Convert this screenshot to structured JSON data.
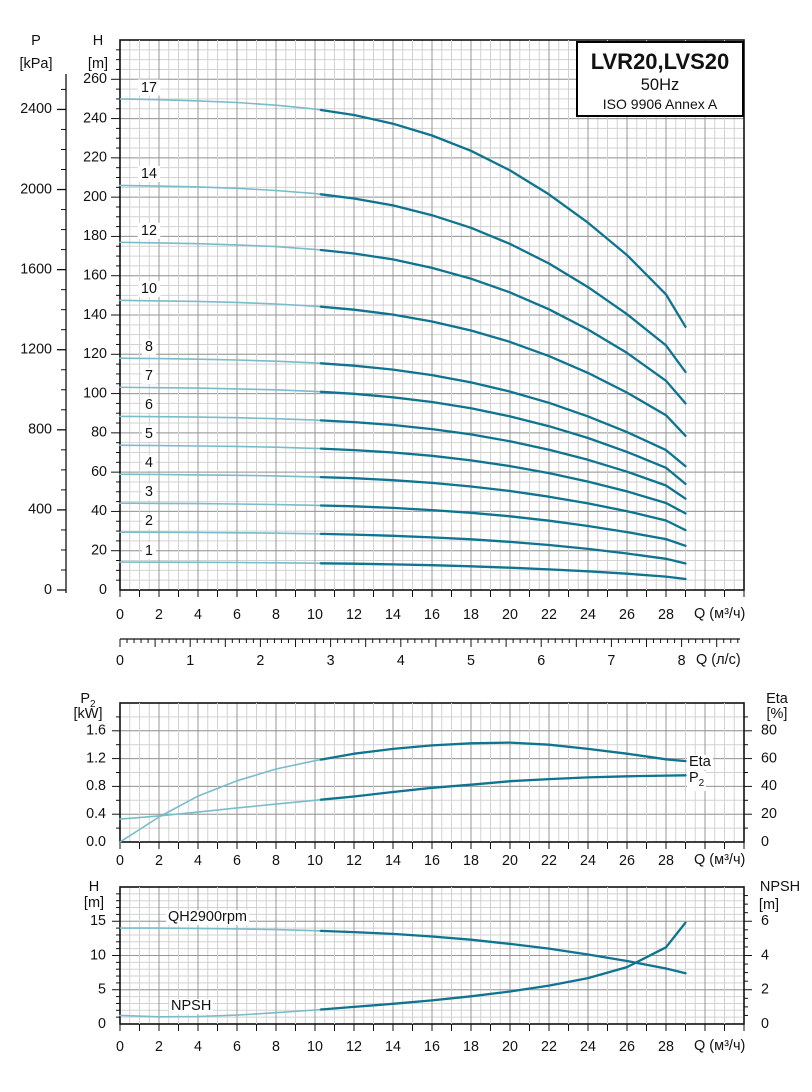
{
  "title_box": {
    "model": "LVR20,LVS20",
    "frequency": "50Hz",
    "standard": "ISO 9906 Annex A"
  },
  "colors": {
    "curve_light": "#79bcca",
    "curve_dark": "#0e7490",
    "grid_minor": "#d2d2d2",
    "grid_major": "#979797",
    "axis": "#111111"
  },
  "chart_data": [
    {
      "type": "line",
      "name": "QH stage curves",
      "left_axis": {
        "title": "P",
        "unit": "[kPa]",
        "tick_values": [
          0,
          400,
          800,
          1200,
          1600,
          2000,
          2400
        ]
      },
      "left_axis2": {
        "title": "H",
        "unit": "[m]",
        "tick_values": [
          0,
          20,
          40,
          60,
          80,
          100,
          120,
          140,
          160,
          180,
          200,
          220,
          240,
          260
        ]
      },
      "x_axis": {
        "title": "Q (м³/ч)",
        "tick_values": [
          0,
          2,
          4,
          6,
          8,
          10,
          12,
          14,
          16,
          18,
          20,
          22,
          24,
          26,
          28
        ]
      },
      "x_axis2": {
        "title": "Q (л/с)",
        "tick_values": [
          0,
          1,
          2,
          3,
          4,
          5,
          6,
          7,
          8
        ]
      },
      "split_q": 10.3,
      "x": [
        0,
        2,
        4,
        6,
        8,
        10,
        12,
        14,
        16,
        18,
        20,
        22,
        24,
        26,
        28,
        29
      ],
      "series": [
        {
          "label": "17",
          "values": [
            250,
            249.6,
            249,
            248.2,
            246.8,
            244.8,
            241.8,
            237.4,
            231.4,
            223.6,
            213.6,
            201.4,
            187,
            170.5,
            150.5,
            134
          ]
        },
        {
          "label": "14",
          "values": [
            206,
            205.6,
            205.2,
            204.5,
            203.4,
            201.8,
            199.3,
            195.8,
            190.8,
            184.4,
            176.2,
            166.2,
            154.2,
            140.4,
            124.5,
            111
          ]
        },
        {
          "label": "12",
          "values": [
            177,
            176.7,
            176.3,
            175.7,
            174.8,
            173.4,
            171.3,
            168.3,
            164,
            158.5,
            151.5,
            142.9,
            132.6,
            120.7,
            106.5,
            95
          ]
        },
        {
          "label": "10",
          "values": [
            147.5,
            147.2,
            146.9,
            146.4,
            145.6,
            144.5,
            142.7,
            140.2,
            136.7,
            132.1,
            126.3,
            119.1,
            110.5,
            100.5,
            89,
            78.5
          ]
        },
        {
          "label": "8",
          "values": [
            118,
            117.8,
            117.5,
            117.1,
            116.5,
            115.6,
            114.2,
            112.2,
            109.4,
            105.7,
            101,
            95.3,
            88.4,
            80.4,
            71.2,
            63
          ]
        },
        {
          "label": "7",
          "values": [
            103.2,
            103,
            102.8,
            102.4,
            101.9,
            101.1,
            99.9,
            98.1,
            95.7,
            92.5,
            88.4,
            83.4,
            77.4,
            70.3,
            62.2,
            54
          ]
        },
        {
          "label": "6",
          "values": [
            88.4,
            88.2,
            88,
            87.7,
            87.2,
            86.5,
            85.5,
            84,
            81.9,
            79.2,
            75.7,
            71.4,
            66.3,
            60.2,
            53.2,
            46.5
          ]
        },
        {
          "label": "5",
          "values": [
            73.7,
            73.5,
            73.3,
            73.1,
            72.7,
            72.1,
            71.2,
            70,
            68.3,
            66,
            63.1,
            59.5,
            55.2,
            50.2,
            44.3,
            39
          ]
        },
        {
          "label": "4",
          "values": [
            58.9,
            58.8,
            58.6,
            58.4,
            58.1,
            57.6,
            56.9,
            55.9,
            54.5,
            52.7,
            50.4,
            47.5,
            44.1,
            40.1,
            35.4,
            30.5
          ]
        },
        {
          "label": "3",
          "values": [
            44.2,
            44.1,
            44,
            43.8,
            43.5,
            43.1,
            42.6,
            41.8,
            40.7,
            39.3,
            37.5,
            35.3,
            32.6,
            29.5,
            25.9,
            22.5
          ]
        },
        {
          "label": "2",
          "values": [
            29.4,
            29.35,
            29.25,
            29.1,
            28.9,
            28.6,
            28.2,
            27.6,
            26.8,
            25.8,
            24.5,
            22.9,
            20.9,
            18.6,
            15.9,
            13.5
          ]
        },
        {
          "label": "1",
          "values": [
            14.2,
            14.15,
            14.1,
            14,
            13.85,
            13.65,
            13.4,
            13.05,
            12.6,
            12.05,
            11.35,
            10.5,
            9.5,
            8.3,
            6.8,
            5.6
          ]
        }
      ]
    },
    {
      "type": "line",
      "name": "Power and efficiency",
      "left_axis": {
        "title": "P",
        "title_sub": "2",
        "unit": "[kW]",
        "tick_values": [
          0,
          0.4,
          0.8,
          1.2,
          1.6
        ],
        "decimals": 1
      },
      "right_axis": {
        "title": "Eta",
        "unit": "[%]",
        "tick_values": [
          0,
          20,
          40,
          60,
          80
        ]
      },
      "x_axis": {
        "title": "Q (м³/ч)",
        "tick_values": [
          0,
          2,
          4,
          6,
          8,
          10,
          12,
          14,
          16,
          18,
          20,
          22,
          24,
          26,
          28
        ]
      },
      "split_q": 10.3,
      "x": [
        0,
        2,
        4,
        6,
        8,
        10,
        12,
        14,
        16,
        18,
        20,
        22,
        24,
        26,
        28,
        29
      ],
      "series": [
        {
          "label": "Eta",
          "axis": "right",
          "values": [
            0,
            18,
            33,
            44,
            52.5,
            58.5,
            63.5,
            67,
            69.5,
            71,
            71.5,
            70,
            67,
            63.5,
            59.5,
            58.2
          ]
        },
        {
          "label": "P2",
          "axis": "left",
          "values": [
            0.33,
            0.375,
            0.43,
            0.49,
            0.545,
            0.6,
            0.655,
            0.72,
            0.78,
            0.825,
            0.875,
            0.905,
            0.93,
            0.945,
            0.955,
            0.96
          ]
        }
      ],
      "annotations": [
        {
          "text": "Eta",
          "sub": ""
        },
        {
          "text": "P",
          "sub": "2"
        }
      ]
    },
    {
      "type": "line",
      "name": "Single stage QH and NPSH",
      "left_axis": {
        "title": "H",
        "unit": "[m]",
        "tick_values": [
          0,
          5,
          10,
          15
        ]
      },
      "right_axis": {
        "title": "NPSH",
        "unit": "[m]",
        "tick_values": [
          0,
          2,
          4,
          6
        ]
      },
      "x_axis": {
        "title": "Q (м³/ч)",
        "tick_values": [
          0,
          2,
          4,
          6,
          8,
          10,
          12,
          14,
          16,
          18,
          20,
          22,
          24,
          26,
          28
        ]
      },
      "split_q": 10.3,
      "x": [
        0,
        2,
        4,
        6,
        8,
        10,
        12,
        14,
        16,
        18,
        20,
        22,
        24,
        26,
        28,
        29
      ],
      "series": [
        {
          "label": "QH2900rpm",
          "axis": "left",
          "values": [
            14,
            14,
            13.95,
            13.88,
            13.78,
            13.62,
            13.42,
            13.15,
            12.78,
            12.3,
            11.7,
            11,
            10.15,
            9.2,
            8.1,
            7.4
          ]
        },
        {
          "label": "NPSH",
          "axis": "left",
          "values": [
            1.25,
            1.05,
            1.1,
            1.3,
            1.65,
            2.05,
            2.5,
            2.95,
            3.45,
            4.05,
            4.75,
            5.6,
            6.7,
            8.3,
            11.2,
            14.8
          ]
        }
      ],
      "annotations": [
        {
          "text": "QH2900rpm"
        },
        {
          "text": "NPSH"
        }
      ]
    }
  ]
}
